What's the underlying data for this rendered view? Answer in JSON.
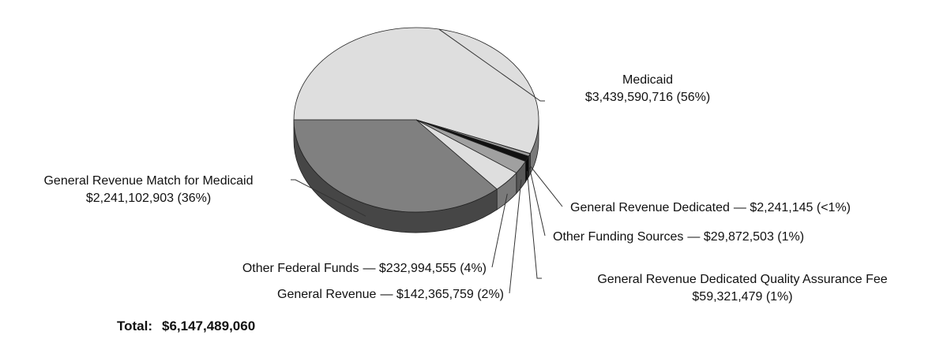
{
  "chart_data": {
    "type": "pie",
    "categories": [
      "Medicaid",
      "General Revenue Dedicated",
      "Other Funding Sources",
      "General Revenue Dedicated Quality Assurance Fee",
      "General Revenue",
      "Other Federal Funds",
      "General Revenue Match for Medicaid"
    ],
    "values": [
      3439590716,
      2241145,
      29872503,
      59321479,
      142365759,
      232994555,
      2241102903
    ],
    "value_labels": [
      "$3,439,590,716 (56%)",
      "— $2,241,145 (<1%)",
      "— $29,872,503 (1%)",
      "$59,321,479 (1%)",
      "— $142,365,759 (2%)",
      "— $232,994,555 (4%)",
      "$2,241,102,903 (36%)"
    ],
    "colors": [
      "#dedede",
      "#111111",
      "#a0a0a0",
      "#111111",
      "#a0a0a0",
      "#dedede",
      "#808080"
    ],
    "total": {
      "label": "Total:",
      "value": 6147489060,
      "value_label": "$6,147,489,060"
    }
  }
}
